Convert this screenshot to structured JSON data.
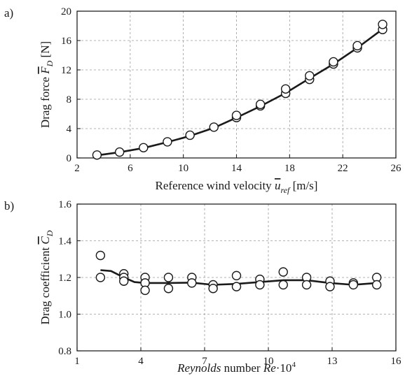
{
  "chart_data": [
    {
      "panel_label": "a)",
      "type": "scatter",
      "xlabel_pre": "Reference wind velocity ",
      "xlabel_var": "u",
      "xlabel_sub": "ref",
      "xlabel_post": " [m/s]",
      "ylabel_pre": "Drag force ",
      "ylabel_var": "F",
      "ylabel_sub": "D",
      "ylabel_post": " [N]",
      "xlim": [
        2,
        26
      ],
      "ylim": [
        0,
        20
      ],
      "xticks": [
        2,
        6,
        10,
        14,
        18,
        22,
        26
      ],
      "yticks": [
        0,
        4,
        8,
        12,
        16,
        20
      ],
      "grid": true,
      "series": [
        {
          "kind": "markers",
          "points": [
            [
              3.5,
              0.4
            ],
            [
              5.2,
              0.8
            ],
            [
              7.0,
              1.4
            ],
            [
              8.8,
              2.2
            ],
            [
              10.5,
              3.1
            ],
            [
              12.3,
              4.2
            ],
            [
              14.0,
              5.5
            ],
            [
              14.0,
              5.8
            ],
            [
              15.8,
              7.1
            ],
            [
              15.8,
              7.3
            ],
            [
              17.7,
              8.8
            ],
            [
              17.7,
              9.4
            ],
            [
              19.5,
              10.7
            ],
            [
              19.5,
              11.2
            ],
            [
              21.3,
              12.8
            ],
            [
              21.3,
              13.1
            ],
            [
              23.1,
              15.0
            ],
            [
              23.1,
              15.3
            ],
            [
              25.0,
              17.5
            ],
            [
              25.0,
              18.2
            ]
          ]
        },
        {
          "kind": "line",
          "points": [
            [
              3.5,
              0.35
            ],
            [
              5.2,
              0.78
            ],
            [
              7.0,
              1.35
            ],
            [
              8.8,
              2.15
            ],
            [
              10.5,
              3.0
            ],
            [
              12.3,
              4.1
            ],
            [
              14.0,
              5.5
            ],
            [
              15.8,
              7.05
            ],
            [
              17.7,
              8.85
            ],
            [
              19.5,
              10.85
            ],
            [
              21.3,
              12.8
            ],
            [
              23.1,
              15.0
            ],
            [
              25.0,
              17.55
            ]
          ]
        }
      ]
    },
    {
      "panel_label": "b)",
      "type": "scatter",
      "xlabel_var": "Reynolds",
      "xlabel_pre": " number ",
      "xlabel_var2": "Re",
      "xlabel_post": "·10",
      "xlabel_sup": "4",
      "ylabel_pre": "Drag coefficient ",
      "ylabel_var": "C",
      "ylabel_sub": "D",
      "xlim": [
        1,
        16
      ],
      "ylim": [
        0.8,
        1.6
      ],
      "xticks": [
        1,
        4,
        7,
        10,
        13,
        16
      ],
      "yticks": [
        0.8,
        1.0,
        1.2,
        1.4,
        1.6
      ],
      "ytick_labels": [
        "0.8",
        "1.0",
        "1.2",
        "1.4",
        "1.6"
      ],
      "grid": true,
      "series": [
        {
          "kind": "markers",
          "points": [
            [
              2.1,
              1.32
            ],
            [
              2.1,
              1.2
            ],
            [
              3.2,
              1.22
            ],
            [
              3.2,
              1.2
            ],
            [
              3.2,
              1.18
            ],
            [
              4.2,
              1.2
            ],
            [
              4.2,
              1.17
            ],
            [
              4.2,
              1.13
            ],
            [
              5.3,
              1.2
            ],
            [
              5.3,
              1.14
            ],
            [
              6.4,
              1.2
            ],
            [
              6.4,
              1.17
            ],
            [
              7.4,
              1.16
            ],
            [
              7.4,
              1.14
            ],
            [
              8.5,
              1.21
            ],
            [
              8.5,
              1.15
            ],
            [
              9.6,
              1.19
            ],
            [
              9.6,
              1.16
            ],
            [
              10.7,
              1.23
            ],
            [
              10.7,
              1.16
            ],
            [
              11.8,
              1.2
            ],
            [
              11.8,
              1.16
            ],
            [
              12.9,
              1.18
            ],
            [
              12.9,
              1.15
            ],
            [
              14.0,
              1.17
            ],
            [
              14.0,
              1.16
            ],
            [
              15.1,
              1.2
            ],
            [
              15.1,
              1.16
            ]
          ]
        },
        {
          "kind": "line",
          "points": [
            [
              2.1,
              1.24
            ],
            [
              2.6,
              1.235
            ],
            [
              3.2,
              1.2
            ],
            [
              3.7,
              1.175
            ],
            [
              4.2,
              1.17
            ],
            [
              5.3,
              1.17
            ],
            [
              6.4,
              1.172
            ],
            [
              7.4,
              1.16
            ],
            [
              8.5,
              1.165
            ],
            [
              9.6,
              1.175
            ],
            [
              10.7,
              1.185
            ],
            [
              11.8,
              1.185
            ],
            [
              12.9,
              1.17
            ],
            [
              14.0,
              1.16
            ],
            [
              15.1,
              1.17
            ]
          ]
        }
      ]
    }
  ]
}
